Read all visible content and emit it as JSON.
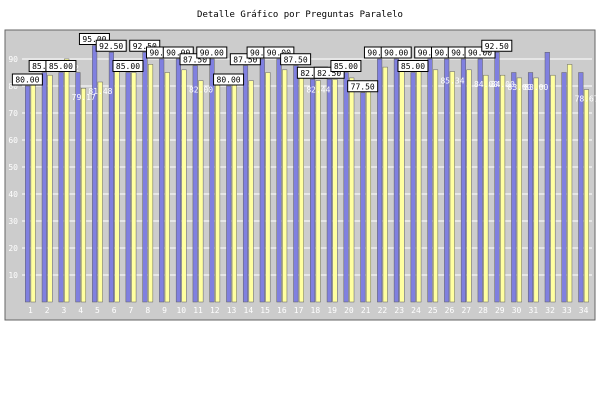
{
  "chart_data": {
    "type": "bar",
    "title": "Detalle Gráfico por Preguntas Paralelo",
    "xlabel": "",
    "ylabel": "",
    "ylim": [
      0,
      100
    ],
    "yticks": [
      10,
      20,
      30,
      40,
      50,
      60,
      70,
      80,
      90
    ],
    "grid": true,
    "legend": "none",
    "categories": [
      "1",
      "2",
      "3",
      "4",
      "5",
      "6",
      "7",
      "8",
      "9",
      "10",
      "11",
      "12",
      "13",
      "14",
      "15",
      "16",
      "17",
      "18",
      "19",
      "20",
      "21",
      "22",
      "23",
      "24",
      "25",
      "26",
      "27",
      "28",
      "29",
      "30",
      "31",
      "32",
      "33",
      "34"
    ],
    "series": [
      {
        "values": [
          80.0,
          85.0,
          85.0,
          85.0,
          95.0,
          92.5,
          85.0,
          92.5,
          90.0,
          90.0,
          87.5,
          90.0,
          80.0,
          87.5,
          90.0,
          90.0,
          87.5,
          82.5,
          82.5,
          85.0,
          77.5,
          90.0,
          90.0,
          85.0,
          90.0,
          90.0,
          90.0,
          90.0,
          92.5,
          85.0,
          85.0,
          92.5,
          85.0,
          85.0
        ],
        "labels": [
          "80.00",
          "85.00",
          "85.00",
          "",
          "95.00",
          "92.50",
          "85.00",
          "92.50",
          "90.00",
          "90.00",
          "87.50",
          "90.00",
          "80.00",
          "87.50",
          "90.00",
          "90.00",
          "87.50",
          "82.50",
          "82.50",
          "85.00",
          "77.50",
          "90.00",
          "90.00",
          "85.00",
          "90.00",
          "90.00",
          "90.00",
          "90.00",
          "92.50",
          "",
          "",
          "",
          "",
          ""
        ],
        "color": "#8080e0"
      },
      {
        "values": [
          82.0,
          84.0,
          90.02,
          79.17,
          81.48,
          88.0,
          85.0,
          88.0,
          85.0,
          86.0,
          82.0,
          84.0,
          82.0,
          82.0,
          85.0,
          86.0,
          84.0,
          82.0,
          82.44,
          83.0,
          81.0,
          87.0,
          86.0,
          87.0,
          86.0,
          85.34,
          86.0,
          84.0,
          84.0,
          83.0,
          83.0,
          84.0,
          88.0,
          78.67
        ],
        "labels": [
          "",
          "",
          "90.02",
          "79.17",
          "81.48",
          "",
          "",
          "",
          "",
          "",
          "82.00",
          "",
          "",
          "",
          "",
          "",
          "",
          "82.44",
          "",
          "",
          "",
          "",
          "",
          "",
          "",
          "85.34",
          "",
          "84.00",
          "84.00",
          "83.00",
          "83.00",
          "",
          "",
          "78.67"
        ],
        "color": "#ffffa0"
      }
    ]
  }
}
